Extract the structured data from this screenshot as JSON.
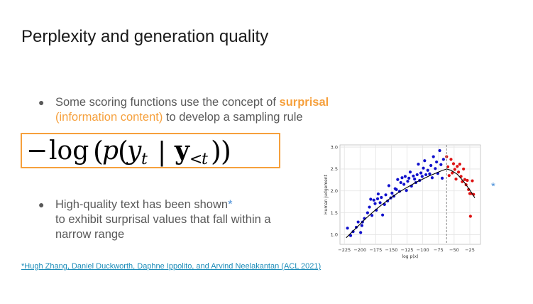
{
  "slide": {
    "title": "Perplexity and generation quality",
    "bullet1": {
      "pre": "Some scoring functions use the concept of ",
      "keyword": "surprisal",
      "paren": "(information content)",
      "post": " to develop a sampling rule"
    },
    "formula": "− log(p(yt | y<t))",
    "bullet2": {
      "text": "High-quality text has been shown",
      "star": "*",
      "text2": "to exhibit surprisal values that fall within a narrow range"
    },
    "side_star": "*",
    "footnote": "*Hugh Zhang, Daniel Duckworth, Daphne Ippolito, and Arvind Neelakantan (ACL 2021)"
  },
  "colors": {
    "accent": "#f6a03c",
    "link": "#1a8bb8",
    "blue_points": "#1010cc",
    "red_points": "#dd1111"
  },
  "chart_data": {
    "type": "scatter",
    "xlabel": "log p(x)",
    "ylabel": "Human judgement",
    "xlim": [
      -232,
      -8
    ],
    "ylim": [
      0.78,
      3.05
    ],
    "xticks": [
      -225,
      -200,
      -175,
      -150,
      -125,
      -100,
      -75,
      -50,
      -25
    ],
    "xtick_labels": [
      "−225",
      "−200",
      "−175",
      "−150",
      "−125",
      "−100",
      "−75",
      "−50",
      "−25"
    ],
    "yticks": [
      1.0,
      1.5,
      2.0,
      2.5,
      3.0
    ],
    "ytick_labels": [
      "1.0",
      "1.5",
      "2.0",
      "2.5",
      "3.0"
    ],
    "grid": true,
    "vline_x": -62,
    "curve": [
      [
        -222,
        0.93
      ],
      [
        -210,
        1.1
      ],
      [
        -200,
        1.24
      ],
      [
        -190,
        1.38
      ],
      [
        -180,
        1.51
      ],
      [
        -170,
        1.63
      ],
      [
        -160,
        1.74
      ],
      [
        -150,
        1.85
      ],
      [
        -140,
        1.95
      ],
      [
        -130,
        2.04
      ],
      [
        -120,
        2.12
      ],
      [
        -110,
        2.2
      ],
      [
        -100,
        2.27
      ],
      [
        -90,
        2.34
      ],
      [
        -80,
        2.4
      ],
      [
        -70,
        2.46
      ],
      [
        -62,
        2.5
      ],
      [
        -55,
        2.47
      ],
      [
        -45,
        2.38
      ],
      [
        -35,
        2.22
      ],
      [
        -25,
        2.02
      ],
      [
        -17,
        1.84
      ]
    ],
    "series": [
      {
        "color": "blue",
        "points": [
          [
            -220,
            1.15
          ],
          [
            -215,
            0.98
          ],
          [
            -211,
            1.07
          ],
          [
            -206,
            1.17
          ],
          [
            -203,
            1.29
          ],
          [
            -199,
            1.05
          ],
          [
            -197,
            1.21
          ],
          [
            -196,
            1.29
          ],
          [
            -193,
            1.37
          ],
          [
            -188,
            1.5
          ],
          [
            -185,
            1.63
          ],
          [
            -183,
            1.81
          ],
          [
            -181,
            1.44
          ],
          [
            -178,
            1.79
          ],
          [
            -176,
            1.71
          ],
          [
            -174,
            1.56
          ],
          [
            -172,
            1.82
          ],
          [
            -171,
            1.93
          ],
          [
            -168,
            1.73
          ],
          [
            -166,
            1.85
          ],
          [
            -164,
            1.45
          ],
          [
            -161,
            1.69
          ],
          [
            -159,
            1.91
          ],
          [
            -156,
            1.77
          ],
          [
            -154,
            2.12
          ],
          [
            -151,
            1.84
          ],
          [
            -149,
            1.95
          ],
          [
            -146,
            1.88
          ],
          [
            -144,
            2.05
          ],
          [
            -142,
            2.03
          ],
          [
            -140,
            2.26
          ],
          [
            -137,
            1.99
          ],
          [
            -135,
            2.19
          ],
          [
            -133,
            2.3
          ],
          [
            -130,
            2.15
          ],
          [
            -128,
            2.33
          ],
          [
            -126,
            2.01
          ],
          [
            -124,
            2.22
          ],
          [
            -122,
            2.29
          ],
          [
            -120,
            2.43
          ],
          [
            -118,
            2.11
          ],
          [
            -115,
            2.34
          ],
          [
            -113,
            2.27
          ],
          [
            -111,
            2.19
          ],
          [
            -109,
            2.37
          ],
          [
            -107,
            2.61
          ],
          [
            -105,
            2.24
          ],
          [
            -103,
            2.41
          ],
          [
            -101,
            2.33
          ],
          [
            -99,
            2.52
          ],
          [
            -97,
            2.69
          ],
          [
            -95,
            2.37
          ],
          [
            -92,
            2.47
          ],
          [
            -89,
            2.39
          ],
          [
            -87,
            2.58
          ],
          [
            -85,
            2.3
          ],
          [
            -83,
            2.78
          ],
          [
            -80,
            2.51
          ],
          [
            -78,
            2.66
          ],
          [
            -76,
            2.4
          ],
          [
            -73,
            2.92
          ],
          [
            -71,
            2.6
          ],
          [
            -69,
            2.29
          ],
          [
            -67,
            2.72
          ]
        ]
      },
      {
        "color": "red",
        "points": [
          [
            -62,
            2.78
          ],
          [
            -60,
            2.55
          ],
          [
            -58,
            2.35
          ],
          [
            -55,
            2.72
          ],
          [
            -53,
            2.41
          ],
          [
            -51,
            2.62
          ],
          [
            -49,
            2.49
          ],
          [
            -47,
            2.27
          ],
          [
            -45,
            2.56
          ],
          [
            -43,
            2.43
          ],
          [
            -41,
            2.61
          ],
          [
            -39,
            2.33
          ],
          [
            -37,
            2.21
          ],
          [
            -35,
            2.5
          ],
          [
            -33,
            2.26
          ],
          [
            -31,
            2.14
          ],
          [
            -29,
            2.24
          ],
          [
            -27,
            2.03
          ],
          [
            -25,
            1.94
          ],
          [
            -23,
            1.94
          ],
          [
            -21,
            2.23
          ],
          [
            -19,
            1.92
          ],
          [
            -24,
            1.42
          ]
        ]
      }
    ]
  }
}
